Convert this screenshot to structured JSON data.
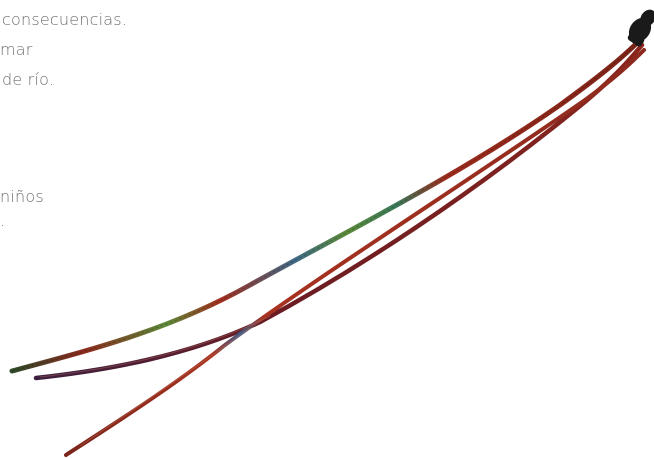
{
  "text_fragments": [
    "consecuencias.",
    "mar",
    "de río.",
    "niños",
    "."
  ],
  "colors": {
    "background": "#ffffff",
    "text": "#6e6e6e",
    "strand_red": "#8c2a1e",
    "strand_dark_red": "#5a1a18",
    "strand_green": "#5d8a3a",
    "strand_blue": "#3f6a86",
    "clasp_black": "#1a1a1a"
  }
}
